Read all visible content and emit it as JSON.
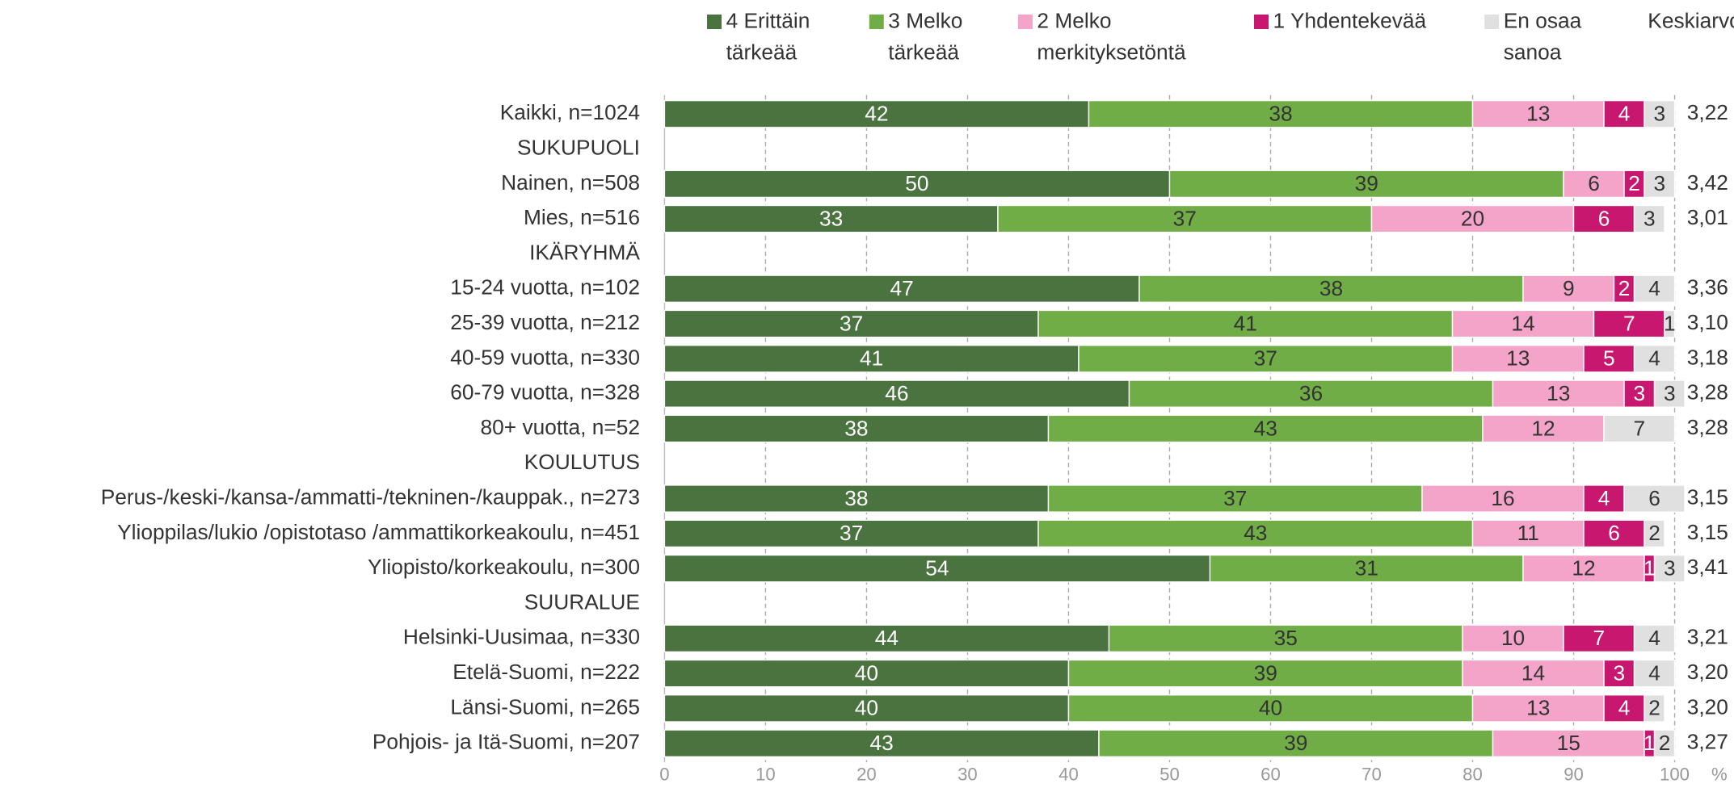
{
  "chart_data": {
    "type": "stacked_bar_horizontal",
    "categories": [
      "Kaikki, n=1024",
      "SUKUPUOLI",
      "Nainen, n=508",
      "Mies, n=516",
      "IKÄRYHMÄ",
      "15-24 vuotta, n=102",
      "25-39 vuotta, n=212",
      "40-59 vuotta, n=330",
      "60-79 vuotta, n=328",
      "80+ vuotta, n=52",
      "KOULUTUS",
      "Perus-/keski-/kansa-/ammatti-/tekninen-/kauppak., n=273",
      "Ylioppilas/lukio /opistotaso /ammattikorkeakoulu, n=451",
      "Yliopisto/korkeakoulu, n=300",
      "SUURALUE",
      "Helsinki-Uusimaa, n=330",
      "Etelä-Suomi, n=222",
      "Länsi-Suomi, n=265",
      "Pohjois- ja Itä-Suomi, n=207"
    ],
    "series": [
      {
        "name": "4 Erittäin tärkeää",
        "color": "#4a7340",
        "label_color": "#ffffff",
        "values": [
          42,
          null,
          50,
          33,
          null,
          47,
          37,
          41,
          46,
          38,
          null,
          38,
          37,
          54,
          null,
          44,
          40,
          40,
          43
        ]
      },
      {
        "name": "3 Melko tärkeää",
        "color": "#70ad47",
        "label_color": "#333333",
        "values": [
          38,
          null,
          39,
          37,
          null,
          38,
          41,
          37,
          36,
          43,
          null,
          37,
          43,
          31,
          null,
          35,
          39,
          40,
          39
        ]
      },
      {
        "name": "2 Melko merkityksetöntä",
        "color": "#f4a3c9",
        "label_color": "#333333",
        "values": [
          13,
          null,
          6,
          20,
          null,
          9,
          14,
          13,
          13,
          12,
          null,
          16,
          11,
          12,
          null,
          10,
          14,
          13,
          15
        ]
      },
      {
        "name": "1 Yhdentekevää",
        "color": "#c8176f",
        "label_color": "#ffffff",
        "values": [
          4,
          null,
          2,
          6,
          null,
          2,
          7,
          5,
          3,
          null,
          null,
          4,
          6,
          1,
          null,
          7,
          3,
          4,
          1
        ]
      },
      {
        "name": "En osaa sanoa",
        "color": "#e0e0e0",
        "label_color": "#333333",
        "values": [
          3,
          null,
          3,
          3,
          null,
          4,
          1,
          4,
          3,
          7,
          null,
          6,
          2,
          3,
          null,
          4,
          4,
          2,
          2
        ]
      }
    ],
    "averages": {
      "title": "Keskiarvo",
      "values": [
        3.22,
        null,
        3.42,
        3.01,
        null,
        3.36,
        3.1,
        3.18,
        3.28,
        3.28,
        null,
        3.15,
        3.15,
        3.41,
        null,
        3.21,
        3.2,
        3.2,
        3.27
      ],
      "value_labels": [
        "3,22",
        null,
        "3,42",
        "3,01",
        null,
        "3,36",
        "3,10",
        "3,18",
        "3,28",
        "3,28",
        null,
        "3,15",
        "3,15",
        "3,41",
        null,
        "3,21",
        "3,20",
        "3,20",
        "3,27"
      ]
    },
    "xlabel": "%",
    "xlim": [
      0,
      100
    ],
    "xticks": [
      0,
      10,
      20,
      30,
      40,
      50,
      60,
      70,
      80,
      90,
      100
    ],
    "grid": true
  }
}
